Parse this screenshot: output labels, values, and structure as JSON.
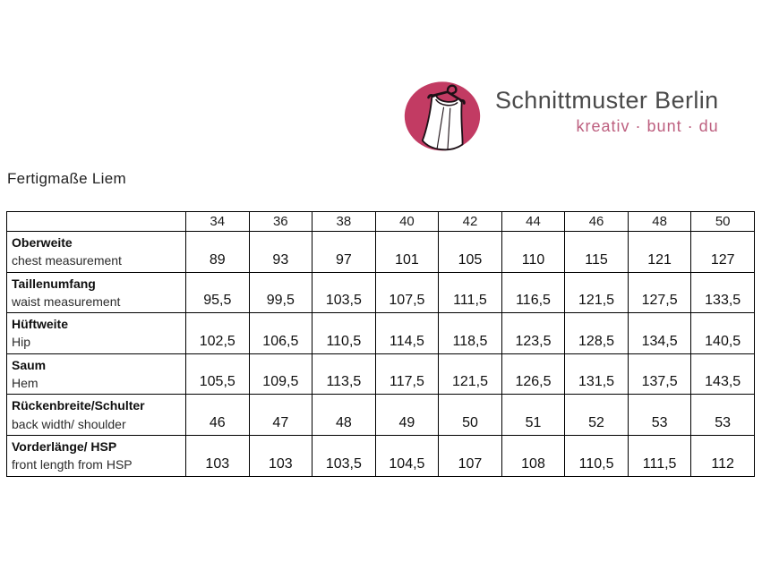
{
  "brand": {
    "name": "Schnittmuster Berlin",
    "tagline": "kreativ · bunt · du",
    "logo_icon": "dress-on-hanger-icon",
    "logo_color": "#c23b63",
    "name_color": "#4a4a4a",
    "tagline_color": "#bd5f7f"
  },
  "page": {
    "title": "Fertigmaße Liem"
  },
  "table": {
    "corner_header": "",
    "sizes": [
      "34",
      "36",
      "38",
      "40",
      "42",
      "44",
      "46",
      "48",
      "50"
    ],
    "rows": [
      {
        "label_de": "Oberweite",
        "label_en": "chest measurement",
        "values": [
          "89",
          "93",
          "97",
          "101",
          "105",
          "110",
          "115",
          "121",
          "127"
        ]
      },
      {
        "label_de": "Taillenumfang",
        "label_en": "waist measurement",
        "values": [
          "95,5",
          "99,5",
          "103,5",
          "107,5",
          "111,5",
          "116,5",
          "121,5",
          "127,5",
          "133,5"
        ]
      },
      {
        "label_de": "Hüftweite",
        "label_en": "Hip",
        "values": [
          "102,5",
          "106,5",
          "110,5",
          "114,5",
          "118,5",
          "123,5",
          "128,5",
          "134,5",
          "140,5"
        ]
      },
      {
        "label_de": "Saum",
        "label_en": "Hem",
        "values": [
          "105,5",
          "109,5",
          "113,5",
          "117,5",
          "121,5",
          "126,5",
          "131,5",
          "137,5",
          "143,5"
        ]
      },
      {
        "label_de": "Rückenbreite/Schulter",
        "label_en": "back width/ shoulder",
        "values": [
          "46",
          "47",
          "48",
          "49",
          "50",
          "51",
          "52",
          "53",
          "53"
        ]
      },
      {
        "label_de": "Vorderlänge/ HSP",
        "label_en": "front length from HSP",
        "values": [
          "103",
          "103",
          "103,5",
          "104,5",
          "107",
          "108",
          "110,5",
          "111,5",
          "112"
        ]
      }
    ]
  }
}
